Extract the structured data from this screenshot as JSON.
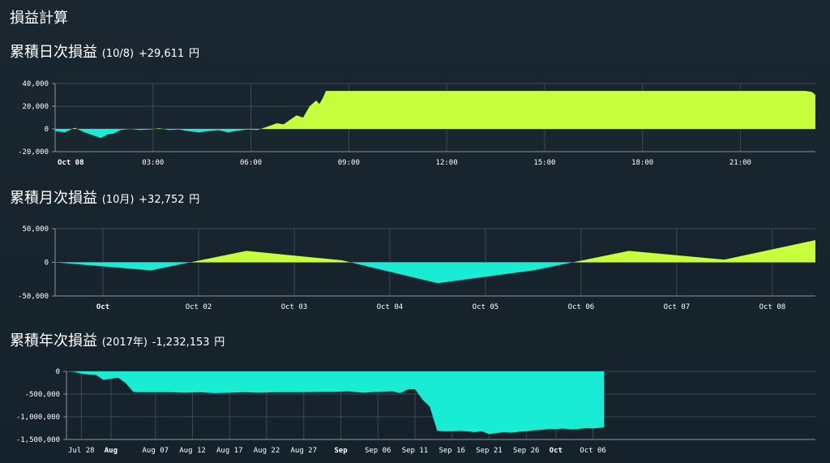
{
  "page": {
    "title": "損益計算"
  },
  "sections": [
    {
      "heading": "累積日次損益",
      "period": "(10/8)",
      "total": "+29,611",
      "unit": "円"
    },
    {
      "heading": "累積月次損益",
      "period": "(10月)",
      "total": "+32,752",
      "unit": "円"
    },
    {
      "heading": "累積年次損益",
      "period": "(2017年)",
      "total": "-1,232,153",
      "unit": "円"
    }
  ],
  "colors": {
    "positive": "#c6ff3c",
    "negative": "#19ecd5",
    "grid": "#3a4a55",
    "axis": "#8a959c"
  },
  "chart_data": [
    {
      "type": "area",
      "xlim": [
        0,
        23.3
      ],
      "ylim": [
        -20000,
        40000
      ],
      "grid": true,
      "y_ticks": [
        {
          "value": -20000,
          "label": "-20,000"
        },
        {
          "value": 0,
          "label": "0"
        },
        {
          "value": 20000,
          "label": "20,000"
        },
        {
          "value": 40000,
          "label": "40,000"
        }
      ],
      "x_ticks": [
        {
          "x": 0,
          "label": "Oct 08",
          "bold": true
        },
        {
          "x": 3,
          "label": "03:00"
        },
        {
          "x": 6,
          "label": "06:00"
        },
        {
          "x": 9,
          "label": "09:00"
        },
        {
          "x": 12,
          "label": "12:00"
        },
        {
          "x": 15,
          "label": "15:00"
        },
        {
          "x": 18,
          "label": "18:00"
        },
        {
          "x": 21,
          "label": "21:00"
        }
      ],
      "x": [
        0,
        0.3,
        0.6,
        0.9,
        1.2,
        1.4,
        1.6,
        1.8,
        2.0,
        2.3,
        2.6,
        2.9,
        3.2,
        3.5,
        3.8,
        4.1,
        4.4,
        4.7,
        5.0,
        5.3,
        5.6,
        5.9,
        6.2,
        6.5,
        6.8,
        7.0,
        7.2,
        7.4,
        7.6,
        7.8,
        8.0,
        8.1,
        8.2,
        8.3,
        9.0,
        12.0,
        15.0,
        18.0,
        21.0,
        23.0,
        23.2,
        23.3
      ],
      "y": [
        -2000,
        -3000,
        1000,
        -3000,
        -6000,
        -8000,
        -5000,
        -4000,
        -1000,
        0,
        -1000,
        -500,
        500,
        -1000,
        -500,
        -2000,
        -3000,
        -2000,
        -1000,
        -3000,
        -1500,
        -500,
        -1000,
        2000,
        5000,
        4000,
        8000,
        12000,
        10000,
        20000,
        25000,
        22000,
        27000,
        33500,
        33500,
        33500,
        33500,
        33500,
        33500,
        33500,
        32500,
        30000
      ]
    },
    {
      "type": "area",
      "xlim": [
        0,
        7.95
      ],
      "ylim": [
        -50000,
        50000
      ],
      "grid": true,
      "y_ticks": [
        {
          "value": -50000,
          "label": "-50,000"
        },
        {
          "value": 0,
          "label": "0"
        },
        {
          "value": 50000,
          "label": "50,000"
        }
      ],
      "x_ticks": [
        {
          "x": 0.5,
          "label": "Oct",
          "bold": true
        },
        {
          "x": 1.5,
          "label": "Oct 02"
        },
        {
          "x": 2.5,
          "label": "Oct 03"
        },
        {
          "x": 3.5,
          "label": "Oct 04"
        },
        {
          "x": 4.5,
          "label": "Oct 05"
        },
        {
          "x": 5.5,
          "label": "Oct 06"
        },
        {
          "x": 6.5,
          "label": "Oct 07"
        },
        {
          "x": 7.5,
          "label": "Oct 08"
        }
      ],
      "x": [
        0,
        1,
        2,
        3,
        4,
        5,
        6,
        7,
        7.95
      ],
      "y": [
        0,
        -12000,
        17000,
        3000,
        -31000,
        -12000,
        17000,
        4000,
        33000
      ]
    },
    {
      "type": "area",
      "xlim": [
        0,
        101
      ],
      "ylim": [
        -1500000,
        0
      ],
      "grid": true,
      "y_ticks": [
        {
          "value": 0,
          "label": "0"
        },
        {
          "value": -500000,
          "label": "-500,000"
        },
        {
          "value": -1000000,
          "label": "-1,000,000"
        },
        {
          "value": -1500000,
          "label": "-1,500,000"
        }
      ],
      "x_ticks": [
        {
          "x": 2,
          "label": "Jul 28"
        },
        {
          "x": 6,
          "label": "Aug",
          "bold": true
        },
        {
          "x": 12,
          "label": "Aug 07"
        },
        {
          "x": 17,
          "label": "Aug 12"
        },
        {
          "x": 22,
          "label": "Aug 17"
        },
        {
          "x": 27,
          "label": "Aug 22"
        },
        {
          "x": 32,
          "label": "Aug 27"
        },
        {
          "x": 37,
          "label": "Sep",
          "bold": true
        },
        {
          "x": 42,
          "label": "Sep 06"
        },
        {
          "x": 47,
          "label": "Sep 11"
        },
        {
          "x": 52,
          "label": "Sep 16"
        },
        {
          "x": 57,
          "label": "Sep 21"
        },
        {
          "x": 62,
          "label": "Sep 26"
        },
        {
          "x": 66,
          "label": "Oct",
          "bold": true
        },
        {
          "x": 71,
          "label": "Oct 06"
        }
      ],
      "x": [
        0,
        1,
        2,
        3,
        4,
        5,
        6,
        7,
        8,
        9,
        10,
        11,
        12,
        14,
        16,
        18,
        20,
        22,
        24,
        26,
        28,
        30,
        32,
        34,
        36,
        38,
        40,
        42,
        44,
        45,
        46,
        47,
        48,
        49,
        50,
        51,
        52,
        53,
        54,
        55,
        56,
        57,
        58,
        59,
        60,
        61,
        62,
        63,
        64,
        65,
        66,
        67,
        68,
        69,
        70,
        71,
        72,
        72.5
      ],
      "y": [
        0,
        -10000,
        -50000,
        -70000,
        -80000,
        -190000,
        -160000,
        -140000,
        -260000,
        -450000,
        -460000,
        -460000,
        -460000,
        -460000,
        -470000,
        -460000,
        -480000,
        -470000,
        -460000,
        -470000,
        -460000,
        -460000,
        -460000,
        -450000,
        -450000,
        -440000,
        -470000,
        -450000,
        -440000,
        -480000,
        -400000,
        -390000,
        -620000,
        -780000,
        -1310000,
        -1320000,
        -1320000,
        -1310000,
        -1320000,
        -1340000,
        -1320000,
        -1380000,
        -1360000,
        -1340000,
        -1350000,
        -1330000,
        -1320000,
        -1300000,
        -1290000,
        -1270000,
        -1270000,
        -1260000,
        -1280000,
        -1270000,
        -1250000,
        -1260000,
        -1240000,
        -1232153
      ]
    }
  ]
}
